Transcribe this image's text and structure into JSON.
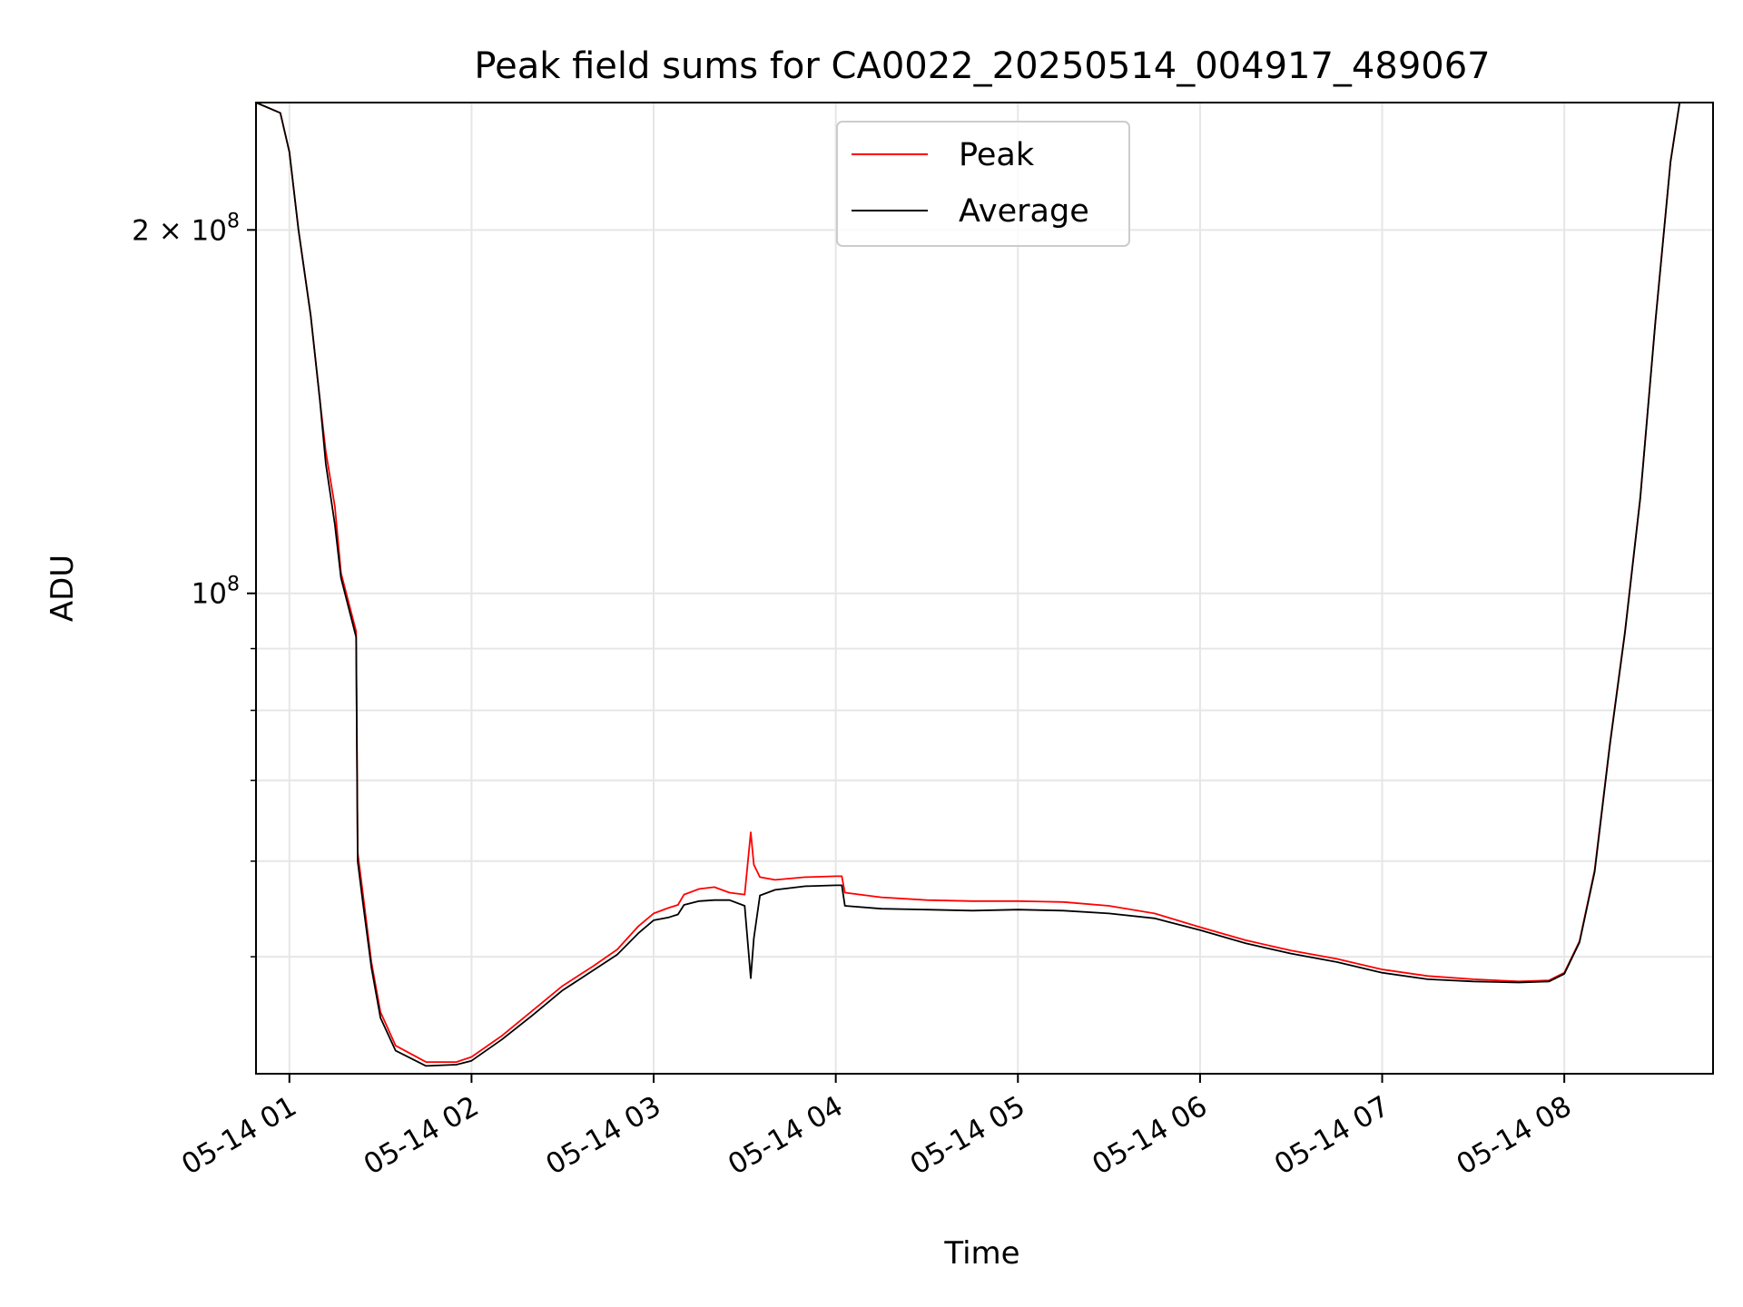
{
  "chart_data": {
    "type": "line",
    "title": "Peak field sums for CA0022_20250514_004917_489067",
    "xlabel": "Time",
    "ylabel": "ADU",
    "y_scale": "log",
    "ylim": [
      40000000,
      255000000
    ],
    "xlim": [
      "2025-05-14 00:49",
      "2025-05-14 08:49"
    ],
    "x_ticks": [
      {
        "value": "2025-05-14 01:00",
        "label": "05-14 01"
      },
      {
        "value": "2025-05-14 02:00",
        "label": "05-14 02"
      },
      {
        "value": "2025-05-14 03:00",
        "label": "05-14 03"
      },
      {
        "value": "2025-05-14 04:00",
        "label": "05-14 04"
      },
      {
        "value": "2025-05-14 05:00",
        "label": "05-14 05"
      },
      {
        "value": "2025-05-14 06:00",
        "label": "05-14 06"
      },
      {
        "value": "2025-05-14 07:00",
        "label": "05-14 07"
      },
      {
        "value": "2025-05-14 08:00",
        "label": "05-14 08"
      }
    ],
    "y_major_ticks": [
      {
        "value": 100000000,
        "base": "10",
        "exp": "8",
        "mantissa": ""
      },
      {
        "value": 200000000,
        "base": "10",
        "exp": "8",
        "mantissa": "2"
      }
    ],
    "y_minor_ticks": [
      50000000,
      60000000,
      70000000,
      80000000,
      90000000
    ],
    "grid": true,
    "legend": {
      "position": "top-center",
      "entries": [
        "Peak",
        "Average"
      ]
    },
    "series": [
      {
        "name": "Peak",
        "color": "#ff0000",
        "x": [
          "2025-05-14 00:49",
          "2025-05-14 00:57",
          "2025-05-14 01:00",
          "2025-05-14 01:03",
          "2025-05-14 01:07",
          "2025-05-14 01:10",
          "2025-05-14 01:12",
          "2025-05-14 01:15",
          "2025-05-14 01:17",
          "2025-05-14 01:22",
          "2025-05-14 01:22:30",
          "2025-05-14 01:24",
          "2025-05-14 01:27",
          "2025-05-14 01:30",
          "2025-05-14 01:35",
          "2025-05-14 01:45",
          "2025-05-14 01:55",
          "2025-05-14 02:00",
          "2025-05-14 02:10",
          "2025-05-14 02:20",
          "2025-05-14 02:30",
          "2025-05-14 02:40",
          "2025-05-14 02:48",
          "2025-05-14 02:55",
          "2025-05-14 03:00",
          "2025-05-14 03:05",
          "2025-05-14 03:08",
          "2025-05-14 03:10",
          "2025-05-14 03:15",
          "2025-05-14 03:20",
          "2025-05-14 03:25",
          "2025-05-14 03:30",
          "2025-05-14 03:32",
          "2025-05-14 03:33",
          "2025-05-14 03:35",
          "2025-05-14 03:40",
          "2025-05-14 03:50",
          "2025-05-14 04:00",
          "2025-05-14 04:02",
          "2025-05-14 04:03",
          "2025-05-14 04:15",
          "2025-05-14 04:30",
          "2025-05-14 04:45",
          "2025-05-14 05:00",
          "2025-05-14 05:15",
          "2025-05-14 05:30",
          "2025-05-14 05:45",
          "2025-05-14 06:00",
          "2025-05-14 06:15",
          "2025-05-14 06:30",
          "2025-05-14 06:45",
          "2025-05-14 07:00",
          "2025-05-14 07:15",
          "2025-05-14 07:30",
          "2025-05-14 07:45",
          "2025-05-14 07:55",
          "2025-05-14 08:00",
          "2025-05-14 08:05",
          "2025-05-14 08:10",
          "2025-05-14 08:15",
          "2025-05-14 08:20",
          "2025-05-14 08:25",
          "2025-05-14 08:30",
          "2025-05-14 08:35",
          "2025-05-14 08:38",
          "2025-05-14 08:49"
        ],
        "y": [
          255000000,
          250000000,
          232000000,
          200000000,
          170000000,
          145000000,
          131000000,
          118000000,
          104000000,
          93000000,
          61000000,
          57000000,
          49500000,
          45000000,
          42200000,
          40900000,
          40900000,
          41300000,
          43000000,
          45100000,
          47300000,
          49100000,
          50700000,
          53000000,
          54300000,
          54900000,
          55200000,
          56300000,
          56900000,
          57100000,
          56500000,
          56300000,
          63400000,
          59600000,
          58200000,
          57900000,
          58200000,
          58300000,
          58300000,
          56500000,
          56000000,
          55700000,
          55600000,
          55600000,
          55500000,
          55100000,
          54300000,
          52900000,
          51600000,
          50600000,
          49800000,
          48800000,
          48200000,
          47900000,
          47700000,
          47800000,
          48500000,
          51500000,
          59000000,
          75000000,
          93000000,
          120000000,
          168000000,
          228000000,
          255000000,
          255000000
        ]
      },
      {
        "name": "Average",
        "color": "#000000",
        "x": [
          "2025-05-14 00:49",
          "2025-05-14 00:57",
          "2025-05-14 01:00",
          "2025-05-14 01:03",
          "2025-05-14 01:07",
          "2025-05-14 01:10",
          "2025-05-14 01:12",
          "2025-05-14 01:15",
          "2025-05-14 01:17",
          "2025-05-14 01:22",
          "2025-05-14 01:22:30",
          "2025-05-14 01:24",
          "2025-05-14 01:27",
          "2025-05-14 01:30",
          "2025-05-14 01:35",
          "2025-05-14 01:45",
          "2025-05-14 01:55",
          "2025-05-14 02:00",
          "2025-05-14 02:10",
          "2025-05-14 02:20",
          "2025-05-14 02:30",
          "2025-05-14 02:40",
          "2025-05-14 02:48",
          "2025-05-14 02:55",
          "2025-05-14 03:00",
          "2025-05-14 03:05",
          "2025-05-14 03:08",
          "2025-05-14 03:10",
          "2025-05-14 03:15",
          "2025-05-14 03:20",
          "2025-05-14 03:25",
          "2025-05-14 03:30",
          "2025-05-14 03:32",
          "2025-05-14 03:33",
          "2025-05-14 03:35",
          "2025-05-14 03:40",
          "2025-05-14 03:50",
          "2025-05-14 04:00",
          "2025-05-14 04:02",
          "2025-05-14 04:03",
          "2025-05-14 04:15",
          "2025-05-14 04:30",
          "2025-05-14 04:45",
          "2025-05-14 05:00",
          "2025-05-14 05:15",
          "2025-05-14 05:30",
          "2025-05-14 05:45",
          "2025-05-14 06:00",
          "2025-05-14 06:15",
          "2025-05-14 06:30",
          "2025-05-14 06:45",
          "2025-05-14 07:00",
          "2025-05-14 07:15",
          "2025-05-14 07:30",
          "2025-05-14 07:45",
          "2025-05-14 07:55",
          "2025-05-14 08:00",
          "2025-05-14 08:05",
          "2025-05-14 08:10",
          "2025-05-14 08:15",
          "2025-05-14 08:20",
          "2025-05-14 08:25",
          "2025-05-14 08:30",
          "2025-05-14 08:35",
          "2025-05-14 08:38",
          "2025-05-14 08:49"
        ],
        "y": [
          255000000,
          250000000,
          232000000,
          200000000,
          170000000,
          145000000,
          128000000,
          114000000,
          103000000,
          92000000,
          60000000,
          56000000,
          49000000,
          44500000,
          41800000,
          40600000,
          40700000,
          41000000,
          42700000,
          44700000,
          46900000,
          48700000,
          50200000,
          52300000,
          53600000,
          53900000,
          54200000,
          55200000,
          55600000,
          55700000,
          55700000,
          55100000,
          48000000,
          51800000,
          56200000,
          56800000,
          57200000,
          57300000,
          57300000,
          55100000,
          54800000,
          54700000,
          54600000,
          54700000,
          54600000,
          54300000,
          53800000,
          52600000,
          51300000,
          50300000,
          49500000,
          48500000,
          47900000,
          47700000,
          47600000,
          47700000,
          48400000,
          51400000,
          58800000,
          74800000,
          92800000,
          119800000,
          167800000,
          227800000,
          255000000,
          255000000
        ]
      }
    ]
  }
}
